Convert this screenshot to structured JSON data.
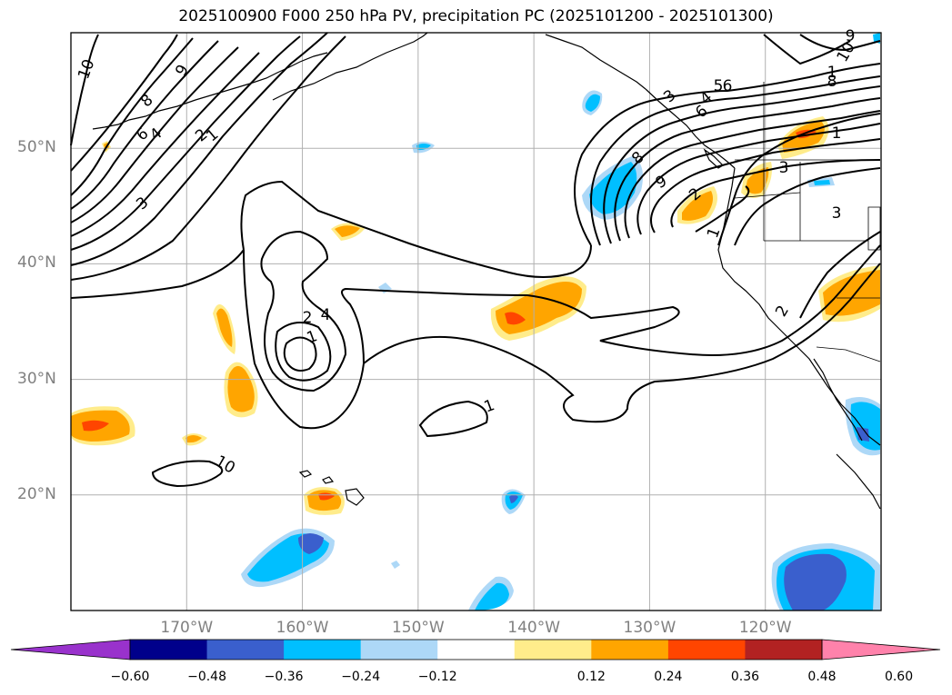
{
  "title": "2025100900 F000 250 hPa PV, precipitation PC (2025101200 - 2025101300)",
  "map": {
    "lon_range": [
      -180,
      -110
    ],
    "lat_range": [
      10,
      60
    ],
    "lat_labels": [
      "20°N",
      "30°N",
      "40°N",
      "50°N"
    ],
    "lat_values": [
      20,
      30,
      40,
      50
    ],
    "lon_labels": [
      "170°W",
      "160°W",
      "150°W",
      "140°W",
      "130°W",
      "120°W"
    ],
    "lon_values": [
      -170,
      -160,
      -150,
      -140,
      -130,
      -120
    ],
    "pv_contour_labels": [
      "10",
      "9",
      "8",
      "6",
      "4",
      "2",
      "1",
      "3",
      "2",
      "4",
      "1",
      "1",
      "10",
      "9",
      "8",
      "6",
      "4",
      "3",
      "2",
      "1",
      "2",
      "1",
      "3",
      "5",
      "6",
      "9",
      "10",
      "8",
      "1",
      "3"
    ]
  },
  "colorbar": {
    "ticks": [
      "−0.60",
      "−0.48",
      "−0.36",
      "−0.24",
      "−0.12",
      "0.12",
      "0.24",
      "0.36",
      "0.48",
      "0.60"
    ],
    "colors": [
      "#9932cc",
      "#00008b",
      "#3a5fcd",
      "#00bfff",
      "#add8f7",
      "#ffffff",
      "#ffec8b",
      "#ffa500",
      "#ff4500",
      "#b22222",
      "#ff82ab"
    ]
  },
  "colors": {
    "neg_strong": "#3a5fcd",
    "neg_mid": "#00bfff",
    "neg_weak": "#add8f7",
    "pos_weak": "#ffec8b",
    "pos_mid": "#ffa500",
    "pos_strong": "#ff4500"
  }
}
